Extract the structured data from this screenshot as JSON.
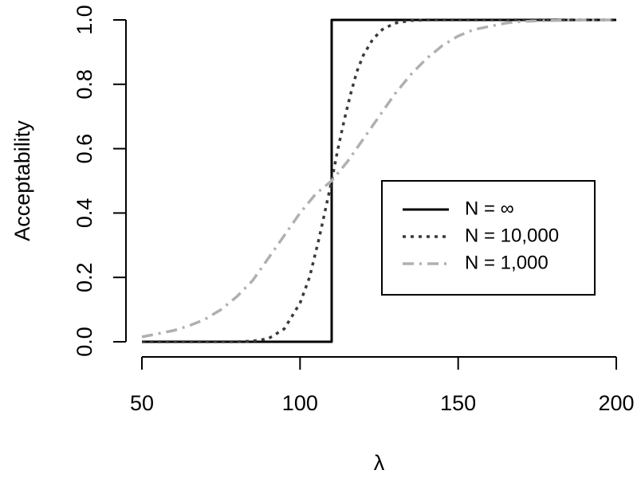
{
  "chart_data": {
    "type": "line",
    "title": "",
    "xlabel": "λ",
    "ylabel": "Acceptability",
    "xlim": [
      50,
      200
    ],
    "ylim": [
      0,
      1
    ],
    "x_ticks": [
      50,
      100,
      150,
      200
    ],
    "y_ticks": [
      0.0,
      0.2,
      0.4,
      0.6,
      0.8,
      1.0
    ],
    "x_tick_labels": [
      "50",
      "100",
      "150",
      "200"
    ],
    "y_tick_labels": [
      "0.0",
      "0.2",
      "0.4",
      "0.6",
      "0.8",
      "1.0"
    ],
    "grid": false,
    "legend_position": "center-right",
    "series": [
      {
        "name": "N = ∞",
        "style": "solid",
        "color": "#000000",
        "x": [
          50,
          60,
          70,
          80,
          90,
          100,
          110,
          110,
          120,
          130,
          140,
          150,
          160,
          170,
          180,
          190,
          200
        ],
        "y": [
          0,
          0,
          0,
          0,
          0,
          0,
          0,
          1,
          1,
          1,
          1,
          1,
          1,
          1,
          1,
          1,
          1
        ]
      },
      {
        "name": "N = 10,000",
        "style": "dotted",
        "color": "#3a3a3a",
        "x": [
          50,
          60,
          70,
          80,
          85,
          90,
          95,
          100,
          103,
          106,
          108,
          110,
          112,
          114,
          116,
          118,
          120,
          123,
          126,
          130,
          135,
          140,
          150,
          160,
          170,
          180,
          190,
          200
        ],
        "y": [
          0.0,
          0.0,
          0.0,
          0.0,
          0.002,
          0.01,
          0.04,
          0.12,
          0.2,
          0.32,
          0.41,
          0.5,
          0.6,
          0.69,
          0.77,
          0.84,
          0.89,
          0.94,
          0.97,
          0.99,
          0.998,
          1.0,
          1.0,
          1.0,
          1.0,
          1.0,
          1.0,
          1.0
        ]
      },
      {
        "name": "N = 1,000",
        "style": "dashdot",
        "color": "#b0b0b0",
        "x": [
          50,
          55,
          60,
          65,
          70,
          75,
          80,
          85,
          90,
          95,
          100,
          105,
          110,
          115,
          120,
          125,
          130,
          135,
          140,
          145,
          150,
          155,
          160,
          165,
          170,
          175,
          180,
          185,
          190,
          195,
          200
        ],
        "y": [
          0.015,
          0.025,
          0.035,
          0.05,
          0.07,
          0.1,
          0.14,
          0.19,
          0.26,
          0.33,
          0.4,
          0.46,
          0.5,
          0.56,
          0.63,
          0.7,
          0.77,
          0.83,
          0.88,
          0.92,
          0.95,
          0.97,
          0.98,
          0.99,
          0.995,
          0.997,
          0.998,
          0.999,
          1.0,
          1.0,
          1.0
        ]
      }
    ]
  }
}
